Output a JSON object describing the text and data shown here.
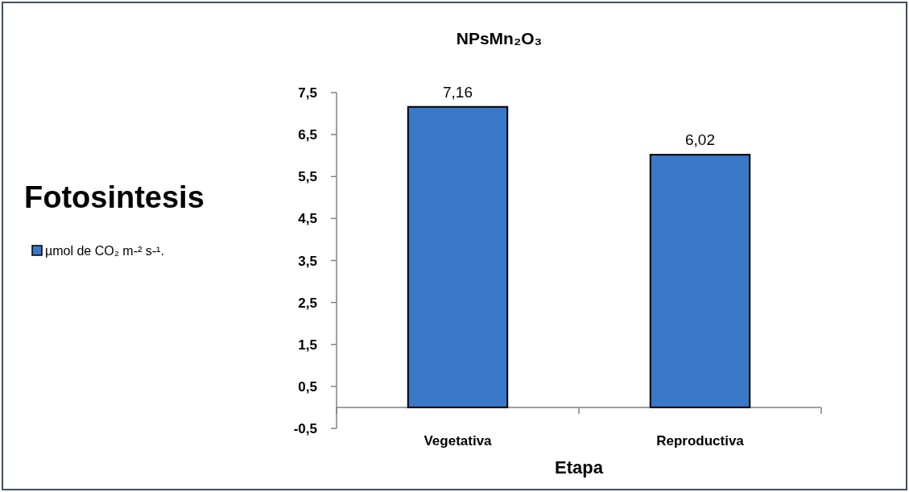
{
  "chart_data": {
    "type": "bar",
    "title": "NPsMn₂O₃",
    "ylabel": "Fotosintesis",
    "xlabel": "Etapa",
    "categories": [
      "Vegetativa",
      "Reproductiva"
    ],
    "series": [
      {
        "name": "µmol de CO₂ m-² s-¹.",
        "color": "#3a78c8",
        "values": [
          7.16,
          6.02
        ],
        "value_labels": [
          "7,16",
          "6,02"
        ]
      }
    ],
    "ylim": [
      -0.5,
      7.5
    ],
    "yticks": [
      {
        "value": -0.5,
        "label": "-0,5"
      },
      {
        "value": 0.5,
        "label": "0,5"
      },
      {
        "value": 1.5,
        "label": "1,5"
      },
      {
        "value": 2.5,
        "label": "2,5"
      },
      {
        "value": 3.5,
        "label": "3,5"
      },
      {
        "value": 4.5,
        "label": "4,5"
      },
      {
        "value": 5.5,
        "label": "5,5"
      },
      {
        "value": 6.5,
        "label": "6,5"
      },
      {
        "value": 7.5,
        "label": "7,5"
      }
    ],
    "legend": "left",
    "grid": false
  }
}
